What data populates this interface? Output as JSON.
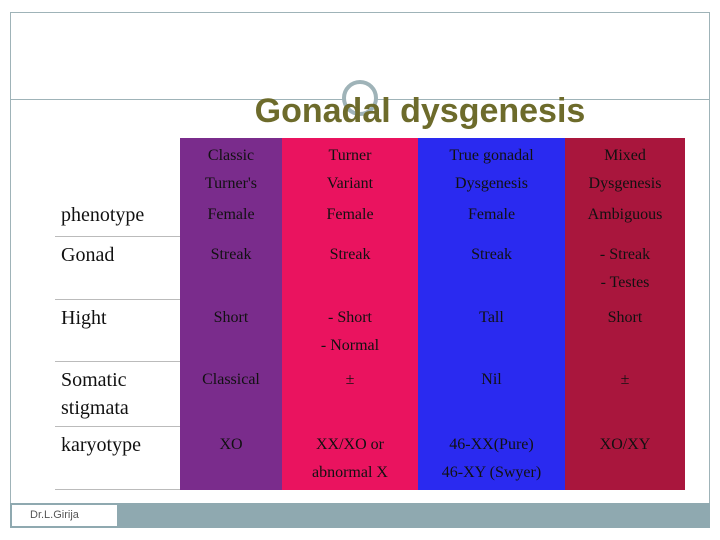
{
  "header": {
    "title": "Gonadal dysgenesis"
  },
  "table": {
    "columns": [
      [
        "Classic",
        "Turner's"
      ],
      [
        "Turner",
        "Variant"
      ],
      [
        "True  gonadal",
        "Dysgenesis"
      ],
      [
        "Mixed",
        "Dysgenesis"
      ]
    ],
    "rows": [
      {
        "label": [
          "phenotype"
        ],
        "cells": [
          [
            "Female"
          ],
          [
            "Female"
          ],
          [
            "Female"
          ],
          [
            "Ambiguous"
          ]
        ]
      },
      {
        "label": [
          "Gonad"
        ],
        "cells": [
          [
            "Streak"
          ],
          [
            "Streak"
          ],
          [
            "Streak"
          ],
          [
            "- Streak",
            "- Testes"
          ]
        ]
      },
      {
        "label": [
          "Hight"
        ],
        "cells": [
          [
            "Short"
          ],
          [
            "- Short",
            "- Normal"
          ],
          [
            "Tall"
          ],
          [
            "Short"
          ]
        ]
      },
      {
        "label": [
          "Somatic",
          "stigmata"
        ],
        "cells": [
          [
            "Classical"
          ],
          [
            "±"
          ],
          [
            "Nil"
          ],
          [
            "±"
          ]
        ]
      },
      {
        "label": [
          "karyotype"
        ],
        "cells": [
          [
            "XO"
          ],
          [
            "XX/XO  or",
            "abnormal  X"
          ],
          [
            "46-XX(Pure)",
            "46-XY (Swyer)"
          ],
          [
            "XO/XY"
          ]
        ]
      }
    ]
  },
  "footer": {
    "author": "Dr.L.Girija"
  }
}
